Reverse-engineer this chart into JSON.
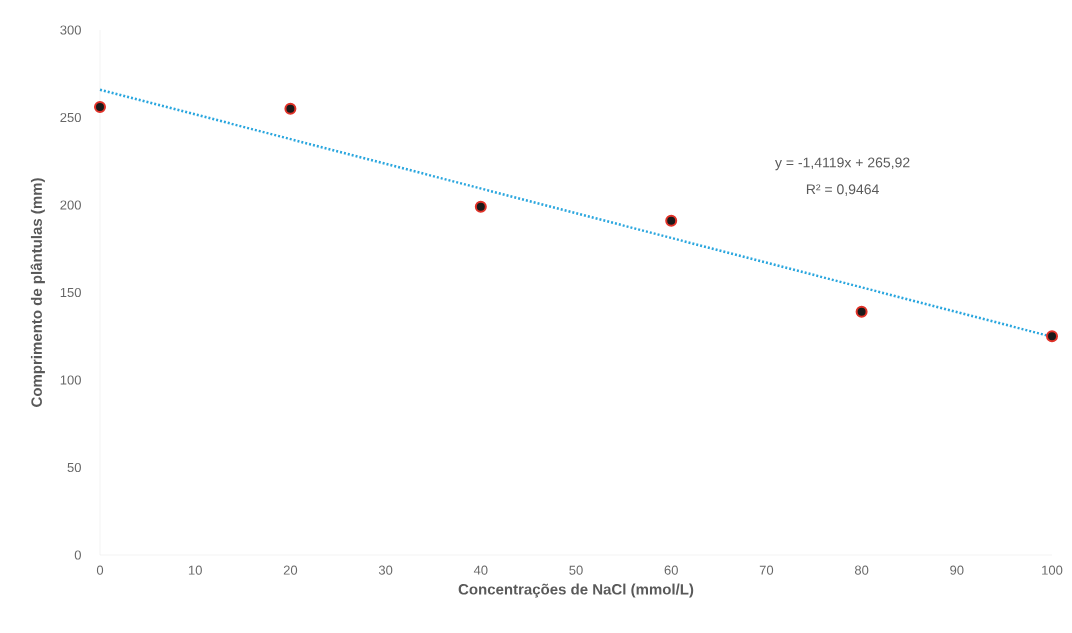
{
  "chart_data": {
    "type": "scatter",
    "xlabel": "Concentrações de NaCl (mmol/L)",
    "ylabel": "Comprimento de plântulas (mm)",
    "xlim": [
      0,
      100
    ],
    "ylim": [
      0,
      300
    ],
    "xticks": [
      0,
      10,
      20,
      30,
      40,
      50,
      60,
      70,
      80,
      90,
      100
    ],
    "yticks": [
      0,
      50,
      100,
      150,
      200,
      250,
      300
    ],
    "grid": false,
    "series": [
      {
        "color": "#1a1a1a",
        "marker": "circle",
        "x": [
          0,
          20,
          40,
          60,
          80,
          100
        ],
        "values": [
          256,
          255,
          199,
          191,
          139,
          125
        ]
      },
      {
        "type": "line",
        "color": "#2aa6de",
        "line_style": "dotted",
        "marker": "none",
        "x": [
          0,
          100
        ],
        "values": [
          265.9,
          124.7
        ]
      }
    ],
    "annotations": [
      "y = -1,4119x + 265,92",
      "R² = 0,9464"
    ]
  }
}
